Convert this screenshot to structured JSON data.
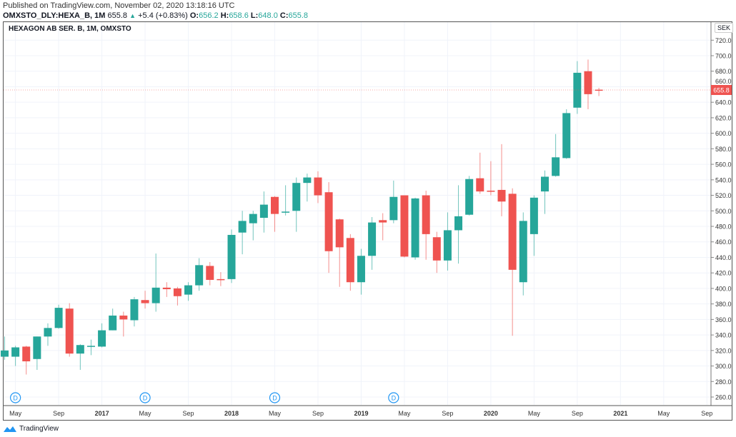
{
  "header": {
    "published": "Published on TradingView.com, November 02, 2020 13:18:16 UTC",
    "symbol": "OMXSTO_DLY:HEXA_B, 1M",
    "last": "655.8",
    "change": "+5.4 (+0.83%)",
    "o_label": "O:",
    "o": "656.2",
    "h_label": "H:",
    "h": "658.6",
    "l_label": "L:",
    "l": "648.0",
    "c_label": "C:",
    "c": "655.8"
  },
  "chart_title": "HEXAGON AB SER. B, 1M, OMXSTO",
  "currency": "SEK",
  "price_tag": "655.8",
  "footer": {
    "brand": "TradingView"
  },
  "colors": {
    "up": "#26a69a",
    "down": "#ef5350",
    "grid": "#f0f3fa",
    "dividend": "#2196f3"
  },
  "chart_data": {
    "type": "candlestick",
    "title": "HEXAGON AB SER. B, 1M, OMXSTO",
    "ylabel": "SEK",
    "ylim": [
      260,
      720
    ],
    "yticks": [
      "260.0",
      "280.0",
      "300.0",
      "320.0",
      "340.0",
      "360.0",
      "380.0",
      "400.0",
      "420.0",
      "440.0",
      "460.0",
      "480.0",
      "500.0",
      "520.0",
      "540.0",
      "560.0",
      "580.0",
      "600.0",
      "620.0",
      "640.0",
      "660.0",
      "680.0",
      "700.0",
      "720.0"
    ],
    "first_month": "2016-04",
    "xticks": [
      {
        "label": "May",
        "m": 1
      },
      {
        "label": "Sep",
        "m": 5
      },
      {
        "label": "2017",
        "m": 9,
        "bold": true
      },
      {
        "label": "May",
        "m": 13
      },
      {
        "label": "Sep",
        "m": 17
      },
      {
        "label": "2018",
        "m": 21,
        "bold": true
      },
      {
        "label": "May",
        "m": 25
      },
      {
        "label": "Sep",
        "m": 29
      },
      {
        "label": "2019",
        "m": 33,
        "bold": true
      },
      {
        "label": "May",
        "m": 37
      },
      {
        "label": "Sep",
        "m": 41
      },
      {
        "label": "2020",
        "m": 45,
        "bold": true
      },
      {
        "label": "May",
        "m": 49
      },
      {
        "label": "Sep",
        "m": 53
      },
      {
        "label": "2021",
        "m": 57,
        "bold": true
      },
      {
        "label": "May",
        "m": 61
      },
      {
        "label": "Sep",
        "m": 65
      }
    ],
    "dividend_marker": "D",
    "dividends": [
      1,
      13,
      25,
      36
    ],
    "ohlc": [
      [
        312,
        338,
        308,
        320
      ],
      [
        312,
        326,
        300,
        324
      ],
      [
        325,
        326,
        289,
        306
      ],
      [
        309,
        338,
        295,
        338
      ],
      [
        338,
        355,
        326,
        349
      ],
      [
        349,
        379,
        348,
        375
      ],
      [
        374,
        381,
        312,
        316
      ],
      [
        316,
        328,
        295,
        327
      ],
      [
        325,
        334,
        314,
        326
      ],
      [
        325,
        355,
        324,
        346
      ],
      [
        346,
        374,
        346,
        365
      ],
      [
        365,
        370,
        338,
        360
      ],
      [
        359,
        389,
        351,
        386
      ],
      [
        385,
        397,
        374,
        381
      ],
      [
        381,
        445,
        370,
        401
      ],
      [
        401,
        408,
        389,
        399
      ],
      [
        400,
        402,
        378,
        390
      ],
      [
        392,
        408,
        384,
        404
      ],
      [
        404,
        439,
        397,
        430
      ],
      [
        429,
        434,
        404,
        411
      ],
      [
        412,
        421,
        403,
        411
      ],
      [
        412,
        476,
        407,
        469
      ],
      [
        472,
        500,
        444,
        487
      ],
      [
        484,
        500,
        462,
        496
      ],
      [
        491,
        525,
        472,
        508
      ],
      [
        518,
        519,
        473,
        496
      ],
      [
        498,
        533,
        494,
        499
      ],
      [
        500,
        543,
        473,
        536
      ],
      [
        536,
        548,
        512,
        543
      ],
      [
        543,
        551,
        510,
        520
      ],
      [
        524,
        537,
        420,
        448
      ],
      [
        489,
        490,
        402,
        453
      ],
      [
        465,
        470,
        397,
        408
      ],
      [
        408,
        451,
        392,
        442
      ],
      [
        442,
        492,
        424,
        485
      ],
      [
        488,
        497,
        462,
        485
      ],
      [
        488,
        539,
        484,
        518
      ],
      [
        520,
        520,
        440,
        441
      ],
      [
        440,
        517,
        437,
        516
      ],
      [
        520,
        526,
        437,
        470
      ],
      [
        466,
        473,
        420,
        436
      ],
      [
        436,
        498,
        423,
        475
      ],
      [
        475,
        533,
        432,
        493
      ],
      [
        495,
        545,
        494,
        541
      ],
      [
        542,
        575,
        522,
        525
      ],
      [
        526,
        564,
        520,
        525
      ],
      [
        527,
        586,
        493,
        512
      ],
      [
        522,
        529,
        339,
        424
      ],
      [
        408,
        498,
        391,
        487
      ],
      [
        470,
        520,
        442,
        517
      ],
      [
        525,
        552,
        496,
        544
      ],
      [
        545,
        599,
        544,
        569
      ],
      [
        568,
        631,
        567,
        626
      ],
      [
        633,
        693,
        625,
        678
      ],
      [
        680,
        695,
        631,
        650.4
      ],
      [
        656.2,
        658.6,
        648.0,
        655.8
      ]
    ]
  }
}
